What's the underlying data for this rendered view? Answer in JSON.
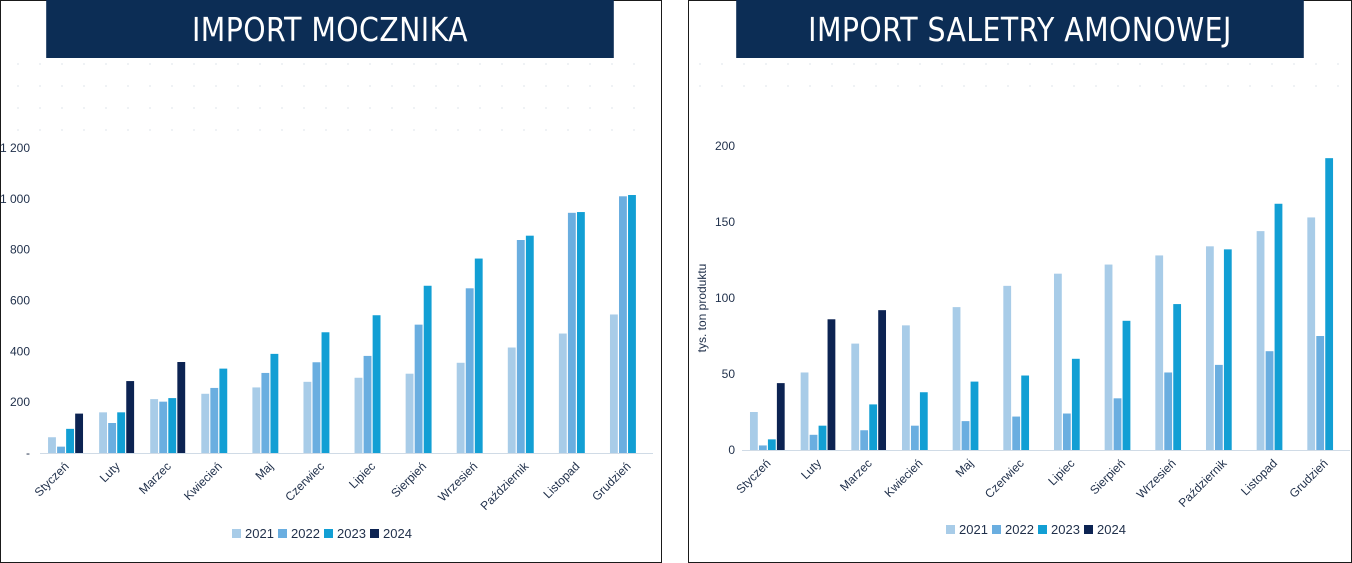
{
  "chart_data": [
    {
      "type": "bar",
      "title": "IMPORT MOCZNIKA",
      "ylabel": "",
      "ylim": [
        0,
        1200
      ],
      "yticks": [
        "-",
        "200",
        "400",
        "600",
        "800",
        "1 000",
        "1 200"
      ],
      "categories": [
        "Styczeń",
        "Luty",
        "Marzec",
        "Kwiecień",
        "Maj",
        "Czerwiec",
        "Lipiec",
        "Sierpień",
        "Wrzesień",
        "Październik",
        "Listopad",
        "Grudzień"
      ],
      "series": [
        {
          "name": "2021",
          "color": "#a8cce8",
          "values": [
            62,
            160,
            212,
            233,
            258,
            280,
            296,
            312,
            355,
            415,
            470,
            545
          ]
        },
        {
          "name": "2022",
          "color": "#6aaee0",
          "values": [
            25,
            118,
            202,
            256,
            315,
            357,
            382,
            505,
            648,
            838,
            945,
            1010
          ]
        },
        {
          "name": "2023",
          "color": "#129fd4",
          "values": [
            95,
            160,
            216,
            332,
            390,
            475,
            542,
            658,
            765,
            855,
            948,
            1015
          ]
        },
        {
          "name": "2024",
          "color": "#0c2352",
          "values": [
            155,
            283,
            358,
            null,
            null,
            null,
            null,
            null,
            null,
            null,
            null,
            null
          ]
        }
      ],
      "legend": "bottom",
      "grid": false
    },
    {
      "type": "bar",
      "title": "IMPORT SALETRY AMONOWEJ",
      "ylabel": "tys. ton produktu",
      "ylim": [
        0,
        200
      ],
      "yticks": [
        "0",
        "50",
        "100",
        "150",
        "200"
      ],
      "categories": [
        "Styczeń",
        "Luty",
        "Marzec",
        "Kwiecień",
        "Maj",
        "Czerwiec",
        "Lipiec",
        "Sierpień",
        "Wrzesień",
        "Październik",
        "Listopad",
        "Grudzień"
      ],
      "series": [
        {
          "name": "2021",
          "color": "#a8cce8",
          "values": [
            25,
            51,
            70,
            82,
            94,
            108,
            116,
            122,
            128,
            134,
            144,
            153
          ]
        },
        {
          "name": "2022",
          "color": "#6aaee0",
          "values": [
            3,
            10,
            13,
            16,
            19,
            22,
            24,
            34,
            51,
            56,
            65,
            75
          ]
        },
        {
          "name": "2023",
          "color": "#129fd4",
          "values": [
            7,
            16,
            30,
            38,
            45,
            49,
            60,
            85,
            96,
            132,
            162,
            192
          ]
        },
        {
          "name": "2024",
          "color": "#0c2352",
          "values": [
            44,
            86,
            92,
            null,
            null,
            null,
            null,
            null,
            null,
            null,
            null,
            null
          ]
        }
      ],
      "legend": "bottom",
      "grid": false
    }
  ]
}
